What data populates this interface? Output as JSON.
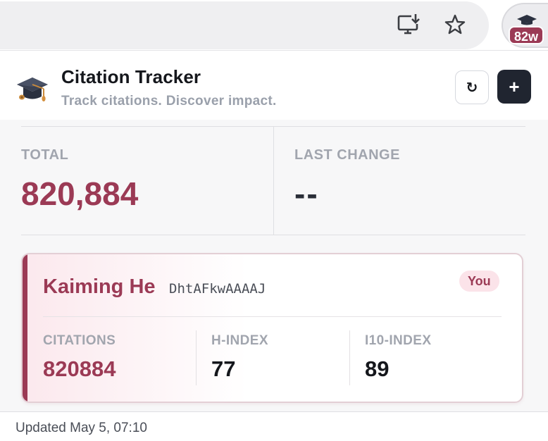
{
  "browser": {
    "icons": [
      "install-app-icon",
      "bookmark-star-icon"
    ],
    "extension": {
      "icon": "graduation-cap-icon",
      "badge": "82w"
    }
  },
  "header": {
    "title": "Citation Tracker",
    "subtitle": "Track citations. Discover impact.",
    "refresh_label": "↻",
    "add_label": "+"
  },
  "stats": {
    "total_label": "TOTAL",
    "total_value": "820,884",
    "change_label": "LAST CHANGE",
    "change_value": "--"
  },
  "author": {
    "name": "Kaiming He",
    "id": "DhtAFkwAAAAJ",
    "badge": "You",
    "metrics": [
      {
        "label": "CITATIONS",
        "value": "820884"
      },
      {
        "label": "H-INDEX",
        "value": "77"
      },
      {
        "label": "I10-INDEX",
        "value": "89"
      }
    ]
  },
  "footer": {
    "updated": "Updated May 5, 07:10"
  },
  "colors": {
    "accent": "#9b3a55",
    "dark": "#202530"
  }
}
